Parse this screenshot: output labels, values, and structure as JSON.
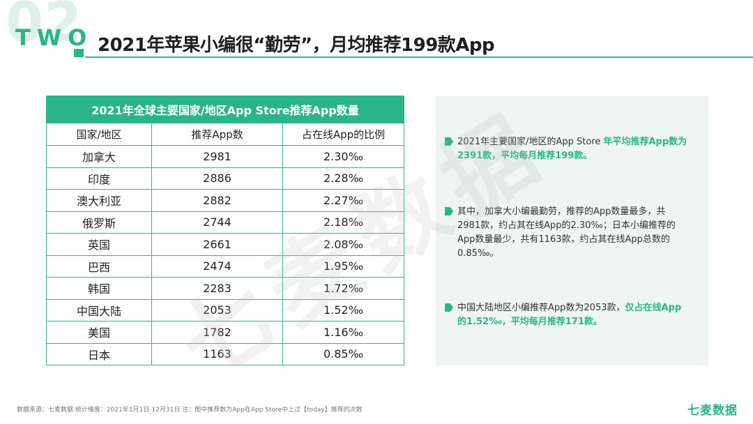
{
  "header": {
    "section_number_bg": "02",
    "section_word": "TWO",
    "title": "2021年苹果小编很“勤劳”，月均推荐199款App"
  },
  "table": {
    "caption": "2021年全球主要国家/地区App Store推荐App数量",
    "columns": [
      "国家/地区",
      "推荐App数",
      "占在线App的比例"
    ],
    "rows": [
      {
        "country": "加拿大",
        "count": "2981",
        "ratio": "2.30‰"
      },
      {
        "country": "印度",
        "count": "2886",
        "ratio": "2.28‰"
      },
      {
        "country": "澳大利亚",
        "count": "2882",
        "ratio": "2.27‰"
      },
      {
        "country": "俄罗斯",
        "count": "2744",
        "ratio": "2.18‰"
      },
      {
        "country": "英国",
        "count": "2661",
        "ratio": "2.08‰"
      },
      {
        "country": "巴西",
        "count": "2474",
        "ratio": "1.95‰"
      },
      {
        "country": "韩国",
        "count": "2283",
        "ratio": "1.72‰"
      },
      {
        "country": "中国大陆",
        "count": "2053",
        "ratio": "1.52‰"
      },
      {
        "country": "美国",
        "count": "1782",
        "ratio": "1.16‰"
      },
      {
        "country": "日本",
        "count": "1163",
        "ratio": "0.85‰"
      }
    ]
  },
  "notes": [
    {
      "plain": "2021年主要国家/地区的App Store ",
      "highlight": "年平均推荐App数为2391款，平均每月推荐199款。",
      "tail": ""
    },
    {
      "plain": "其中，加拿大小编最勤劳，推荐的App数量最多，共2981款，约占其在线App的2.30‰；日本小编推荐的App数量最少，共有1163款，约占其在线App总数的0.85‰。",
      "highlight": "",
      "tail": ""
    },
    {
      "plain": "中国大陆地区小编推荐App数为2053款，",
      "highlight": "仅占在线App的1.52‰，平均每月推荐171款。",
      "tail": ""
    }
  ],
  "watermark": "七麦数据",
  "footer": {
    "source": "数据来源：七麦数据 统计维度：2021年1月1日-12月31日 注：图中推荐数为App在App Store中上过【today】推荐的次数",
    "brand": "七麦数据"
  },
  "colors": {
    "accent": "#2bb48a",
    "panel_bg": "#eef5f2"
  }
}
